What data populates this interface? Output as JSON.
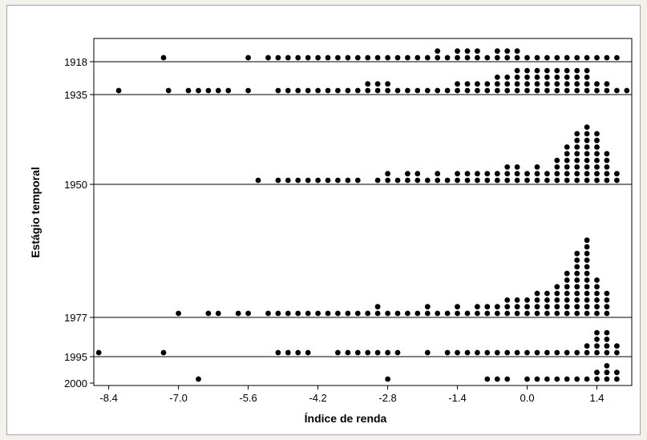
{
  "chart_data": {
    "type": "scatter",
    "chart_kind": "dotplot",
    "title": "",
    "xlabel": "Índice de renda",
    "ylabel": "Estágio temporal",
    "xlim": [
      -8.7,
      2.1
    ],
    "x_ticks": [
      -8.4,
      -7.0,
      -5.6,
      -4.2,
      -2.8,
      -1.4,
      0.0,
      1.4
    ],
    "x_tick_labels": [
      "-8.4",
      "-7.0",
      "-5.6",
      "-4.2",
      "-2.8",
      "-1.4",
      "0.0",
      "1.4"
    ],
    "bin_width": 0.2,
    "series": [
      {
        "name": "1918",
        "points": [
          [
            -7.3,
            1
          ],
          [
            -5.6,
            1
          ],
          [
            -5.2,
            1
          ],
          [
            -5.0,
            1
          ],
          [
            -4.8,
            1
          ],
          [
            -4.6,
            1
          ],
          [
            -4.4,
            1
          ],
          [
            -4.2,
            1
          ],
          [
            -4.0,
            1
          ],
          [
            -3.8,
            1
          ],
          [
            -3.6,
            1
          ],
          [
            -3.4,
            1
          ],
          [
            -3.2,
            1
          ],
          [
            -3.0,
            1
          ],
          [
            -2.8,
            1
          ],
          [
            -2.6,
            1
          ],
          [
            -2.4,
            1
          ],
          [
            -2.2,
            1
          ],
          [
            -2.0,
            1
          ],
          [
            -1.8,
            2
          ],
          [
            -1.6,
            1
          ],
          [
            -1.4,
            2
          ],
          [
            -1.2,
            2
          ],
          [
            -1.0,
            2
          ],
          [
            -0.8,
            1
          ],
          [
            -0.6,
            2
          ],
          [
            -0.4,
            2
          ],
          [
            -0.2,
            2
          ],
          [
            0.0,
            1
          ],
          [
            0.2,
            1
          ],
          [
            0.4,
            1
          ],
          [
            0.6,
            1
          ],
          [
            0.8,
            1
          ],
          [
            1.0,
            1
          ],
          [
            1.2,
            1
          ],
          [
            1.4,
            1
          ],
          [
            1.6,
            1
          ],
          [
            1.8,
            1
          ]
        ]
      },
      {
        "name": "1935",
        "points": [
          [
            -8.2,
            1
          ],
          [
            -7.2,
            1
          ],
          [
            -6.8,
            1
          ],
          [
            -6.6,
            1
          ],
          [
            -6.4,
            1
          ],
          [
            -6.2,
            1
          ],
          [
            -6.0,
            1
          ],
          [
            -5.6,
            1
          ],
          [
            -5.0,
            1
          ],
          [
            -4.8,
            1
          ],
          [
            -4.6,
            1
          ],
          [
            -4.4,
            1
          ],
          [
            -4.2,
            1
          ],
          [
            -4.0,
            1
          ],
          [
            -3.8,
            1
          ],
          [
            -3.6,
            1
          ],
          [
            -3.4,
            1
          ],
          [
            -3.2,
            2
          ],
          [
            -3.0,
            2
          ],
          [
            -2.8,
            2
          ],
          [
            -2.6,
            1
          ],
          [
            -2.4,
            1
          ],
          [
            -2.2,
            1
          ],
          [
            -2.0,
            1
          ],
          [
            -1.8,
            1
          ],
          [
            -1.6,
            1
          ],
          [
            -1.4,
            2
          ],
          [
            -1.2,
            2
          ],
          [
            -1.0,
            2
          ],
          [
            -0.8,
            2
          ],
          [
            -0.6,
            3
          ],
          [
            -0.4,
            3
          ],
          [
            -0.2,
            4
          ],
          [
            0.0,
            4
          ],
          [
            0.2,
            4
          ],
          [
            0.4,
            4
          ],
          [
            0.6,
            4
          ],
          [
            0.8,
            4
          ],
          [
            1.0,
            4
          ],
          [
            1.2,
            4
          ],
          [
            1.4,
            2
          ],
          [
            1.6,
            2
          ],
          [
            1.8,
            1
          ],
          [
            2.0,
            1
          ]
        ]
      },
      {
        "name": "1950",
        "points": [
          [
            -5.4,
            1
          ],
          [
            -5.0,
            1
          ],
          [
            -4.8,
            1
          ],
          [
            -4.6,
            1
          ],
          [
            -4.4,
            1
          ],
          [
            -4.2,
            1
          ],
          [
            -4.0,
            1
          ],
          [
            -3.8,
            1
          ],
          [
            -3.6,
            1
          ],
          [
            -3.4,
            1
          ],
          [
            -3.0,
            1
          ],
          [
            -2.8,
            2
          ],
          [
            -2.6,
            1
          ],
          [
            -2.4,
            2
          ],
          [
            -2.2,
            2
          ],
          [
            -2.0,
            1
          ],
          [
            -1.8,
            2
          ],
          [
            -1.6,
            1
          ],
          [
            -1.4,
            2
          ],
          [
            -1.2,
            2
          ],
          [
            -1.0,
            2
          ],
          [
            -0.8,
            2
          ],
          [
            -0.6,
            2
          ],
          [
            -0.4,
            3
          ],
          [
            -0.2,
            3
          ],
          [
            0.0,
            2
          ],
          [
            0.2,
            3
          ],
          [
            0.4,
            2
          ],
          [
            0.6,
            4
          ],
          [
            0.8,
            6
          ],
          [
            1.0,
            8
          ],
          [
            1.2,
            9
          ],
          [
            1.4,
            8
          ],
          [
            1.6,
            5
          ],
          [
            1.8,
            2
          ]
        ]
      },
      {
        "name": "1977",
        "points": [
          [
            -7.0,
            1
          ],
          [
            -6.4,
            1
          ],
          [
            -6.2,
            1
          ],
          [
            -5.8,
            1
          ],
          [
            -5.6,
            1
          ],
          [
            -5.2,
            1
          ],
          [
            -5.0,
            1
          ],
          [
            -4.8,
            1
          ],
          [
            -4.6,
            1
          ],
          [
            -4.4,
            1
          ],
          [
            -4.2,
            1
          ],
          [
            -4.0,
            1
          ],
          [
            -3.8,
            1
          ],
          [
            -3.6,
            1
          ],
          [
            -3.4,
            1
          ],
          [
            -3.2,
            1
          ],
          [
            -3.0,
            2
          ],
          [
            -2.8,
            1
          ],
          [
            -2.6,
            1
          ],
          [
            -2.4,
            1
          ],
          [
            -2.2,
            1
          ],
          [
            -2.0,
            2
          ],
          [
            -1.8,
            1
          ],
          [
            -1.6,
            1
          ],
          [
            -1.4,
            2
          ],
          [
            -1.2,
            1
          ],
          [
            -1.0,
            2
          ],
          [
            -0.8,
            2
          ],
          [
            -0.6,
            2
          ],
          [
            -0.4,
            3
          ],
          [
            -0.2,
            3
          ],
          [
            0.0,
            3
          ],
          [
            0.2,
            4
          ],
          [
            0.4,
            4
          ],
          [
            0.6,
            5
          ],
          [
            0.8,
            7
          ],
          [
            1.0,
            10
          ],
          [
            1.2,
            12
          ],
          [
            1.4,
            6
          ],
          [
            1.6,
            4
          ]
        ]
      },
      {
        "name": "1995",
        "points": [
          [
            -8.6,
            1
          ],
          [
            -7.3,
            1
          ],
          [
            -5.0,
            1
          ],
          [
            -4.8,
            1
          ],
          [
            -4.6,
            1
          ],
          [
            -4.4,
            1
          ],
          [
            -3.8,
            1
          ],
          [
            -3.6,
            1
          ],
          [
            -3.4,
            1
          ],
          [
            -3.2,
            1
          ],
          [
            -3.0,
            1
          ],
          [
            -2.8,
            1
          ],
          [
            -2.6,
            1
          ],
          [
            -2.0,
            1
          ],
          [
            -1.6,
            1
          ],
          [
            -1.4,
            1
          ],
          [
            -1.2,
            1
          ],
          [
            -1.0,
            1
          ],
          [
            -0.8,
            1
          ],
          [
            -0.6,
            1
          ],
          [
            -0.4,
            1
          ],
          [
            -0.2,
            1
          ],
          [
            0.0,
            1
          ],
          [
            0.2,
            1
          ],
          [
            0.4,
            1
          ],
          [
            0.6,
            1
          ],
          [
            0.8,
            1
          ],
          [
            1.0,
            1
          ],
          [
            1.2,
            2
          ],
          [
            1.4,
            4
          ],
          [
            1.6,
            4
          ],
          [
            1.8,
            2
          ]
        ]
      },
      {
        "name": "2000",
        "points": [
          [
            -6.6,
            1
          ],
          [
            -2.8,
            1
          ],
          [
            -0.8,
            1
          ],
          [
            -0.6,
            1
          ],
          [
            -0.4,
            1
          ],
          [
            0.0,
            1
          ],
          [
            0.2,
            1
          ],
          [
            0.4,
            1
          ],
          [
            0.6,
            1
          ],
          [
            0.8,
            1
          ],
          [
            1.0,
            1
          ],
          [
            1.2,
            1
          ],
          [
            1.4,
            2
          ],
          [
            1.6,
            3
          ],
          [
            1.8,
            2
          ]
        ]
      }
    ],
    "grid": false,
    "dot_color": "#000000"
  }
}
